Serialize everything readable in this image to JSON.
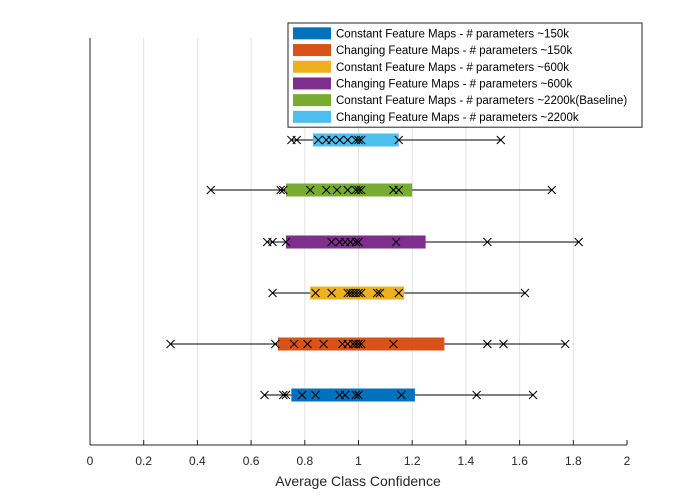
{
  "chart_data": {
    "type": "boxplot",
    "xlabel": "Average Class Confidence",
    "ylabel": "",
    "title": "",
    "xlim": [
      0,
      2
    ],
    "xticks": [
      "0",
      "0.2",
      "0.4",
      "0.6",
      "0.8",
      "1",
      "1.2",
      "1.4",
      "1.6",
      "1.8",
      "2"
    ],
    "grid": "vertical",
    "legend_position": "top-right",
    "series": [
      {
        "name": "Constant Feature Maps - # parameters ~150k",
        "color": "#0072BD",
        "whisker": [
          0.65,
          1.65
        ],
        "box": [
          0.75,
          1.21
        ],
        "points": [
          0.65,
          0.72,
          0.73,
          0.79,
          0.84,
          0.93,
          0.95,
          0.99,
          1.0,
          1.16,
          1.44,
          1.65
        ]
      },
      {
        "name": "Changing Feature Maps - # parameters ~150k",
        "color": "#D95319",
        "whisker": [
          0.3,
          1.77
        ],
        "box": [
          0.7,
          1.32
        ],
        "points": [
          0.3,
          0.69,
          0.76,
          0.81,
          0.87,
          0.94,
          0.96,
          0.98,
          0.99,
          1.0,
          1.01,
          1.13,
          1.48,
          1.54,
          1.77
        ]
      },
      {
        "name": "Constant Feature Maps - # parameters ~600k",
        "color": "#EDB120",
        "whisker": [
          0.68,
          1.62
        ],
        "box": [
          0.82,
          1.17
        ],
        "points": [
          0.68,
          0.84,
          0.9,
          0.96,
          0.97,
          0.98,
          0.99,
          1.0,
          1.01,
          1.07,
          1.08,
          1.15,
          1.62
        ]
      },
      {
        "name": "Changing Feature Maps - # parameters ~600k",
        "color": "#7E2F8E",
        "whisker": [
          0.66,
          1.82
        ],
        "box": [
          0.73,
          1.25
        ],
        "points": [
          0.66,
          0.68,
          0.73,
          0.9,
          0.93,
          0.95,
          0.97,
          0.99,
          1.0,
          1.14,
          1.48,
          1.82
        ]
      },
      {
        "name": "Constant Feature Maps - # parameters ~2200k(Baseline)",
        "color": "#77AC30",
        "whisker": [
          0.45,
          1.72
        ],
        "box": [
          0.73,
          1.2
        ],
        "points": [
          0.45,
          0.71,
          0.72,
          0.82,
          0.88,
          0.92,
          0.96,
          0.99,
          1.0,
          1.01,
          1.13,
          1.15,
          1.72
        ]
      },
      {
        "name": "Changing Feature Maps - # parameters ~2200k",
        "color": "#4DBEEE",
        "whisker": [
          0.75,
          1.53
        ],
        "box": [
          0.83,
          1.15
        ],
        "points": [
          0.75,
          0.77,
          0.85,
          0.88,
          0.9,
          0.93,
          0.96,
          0.99,
          1.0,
          1.01,
          1.15,
          1.53
        ]
      }
    ]
  }
}
